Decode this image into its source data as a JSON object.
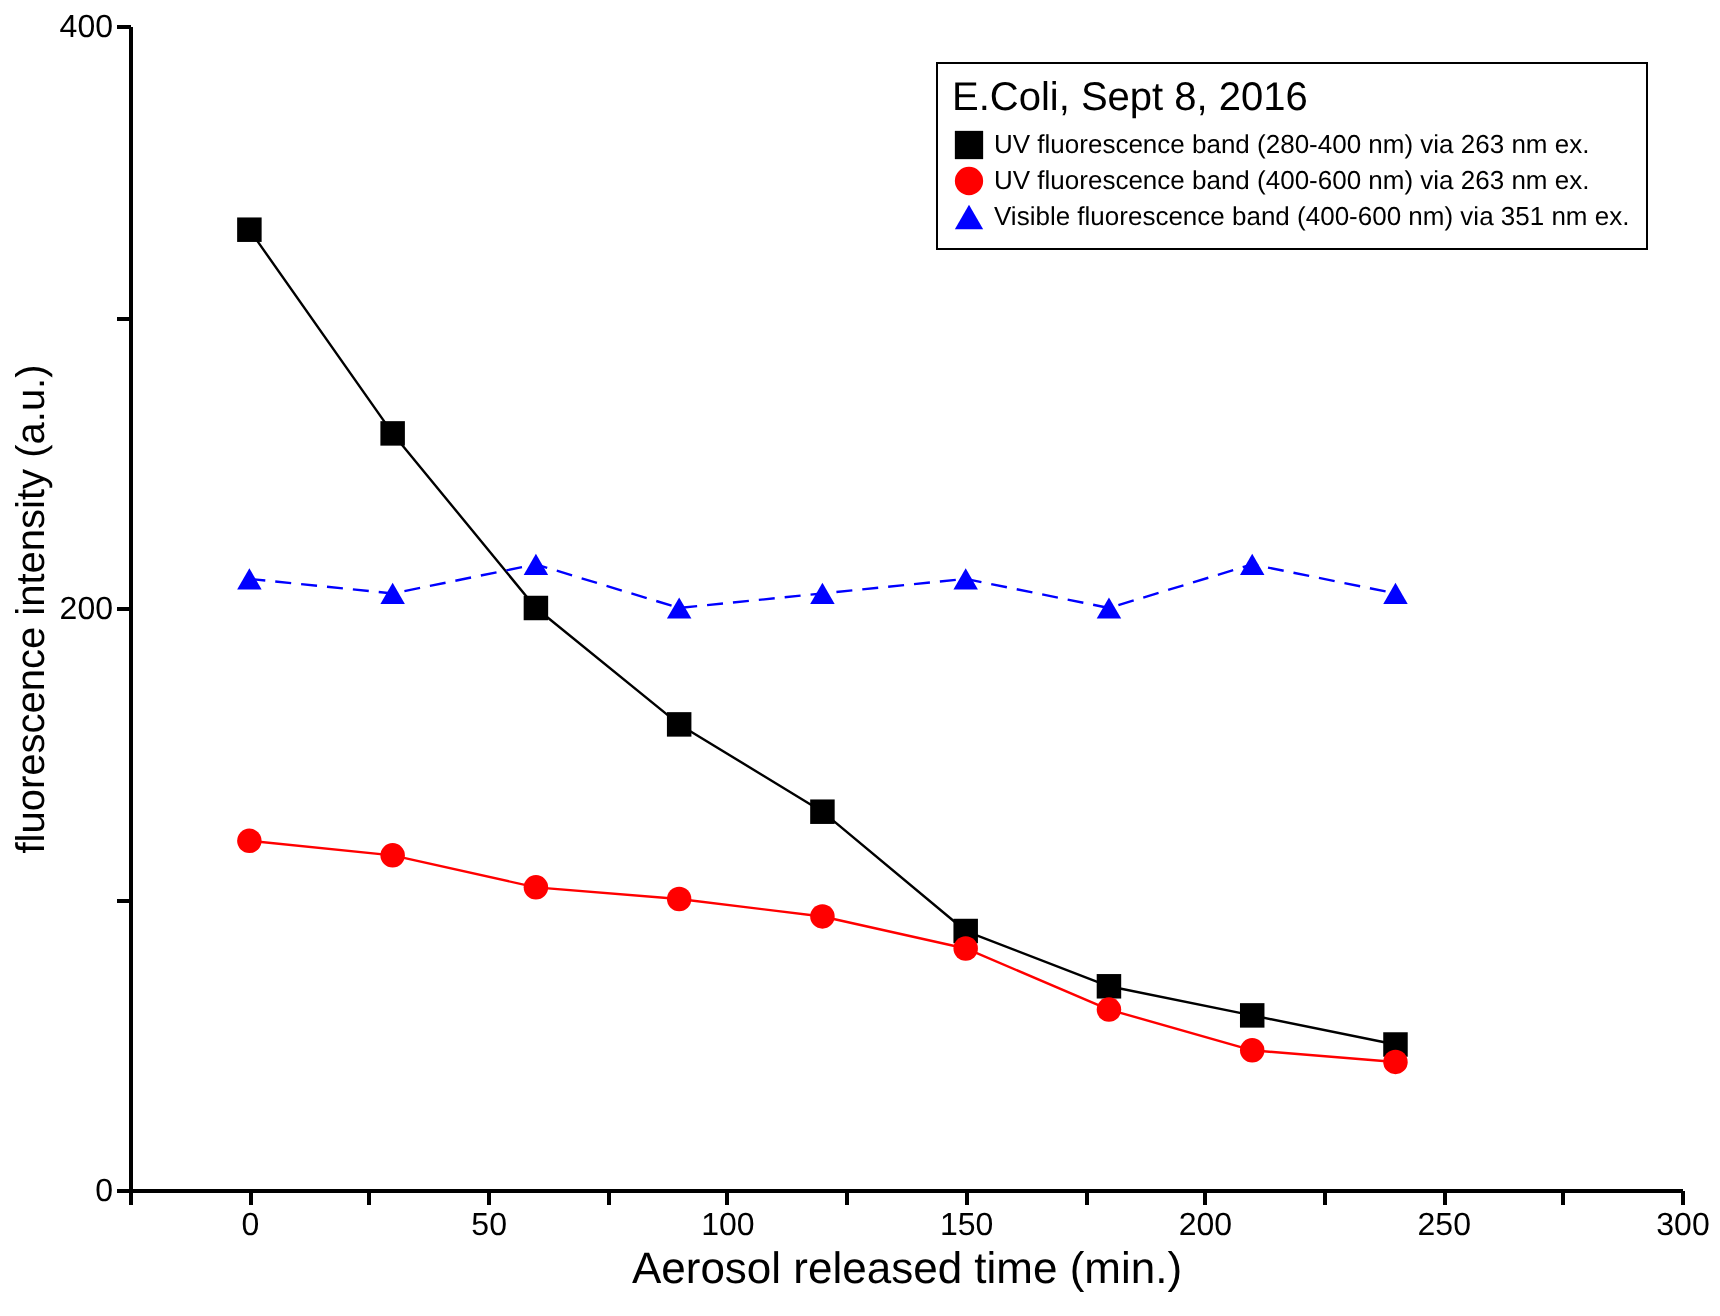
{
  "chart_data": {
    "type": "line",
    "xlabel": "Aerosol released time (min.)",
    "ylabel": "fluorescence intensity (a.u.)",
    "legend_title": "E.Coli, Sept 8, 2016",
    "legend": "top right",
    "grid": false,
    "x": [
      0,
      30,
      60,
      90,
      120,
      150,
      180,
      210,
      240
    ],
    "xlim": [
      -25,
      300
    ],
    "ylim": [
      0,
      400
    ],
    "xticks": [
      {
        "value": -25,
        "label": null
      },
      0,
      {
        "value": 25,
        "label": null
      },
      50,
      {
        "value": 75,
        "label": null
      },
      100,
      {
        "value": 125,
        "label": null
      },
      150,
      {
        "value": 175,
        "label": null
      },
      200,
      {
        "value": 225,
        "label": null
      },
      250,
      {
        "value": 275,
        "label": null
      },
      300
    ],
    "yticks": [
      0,
      {
        "value": 100,
        "label": null
      },
      200,
      {
        "value": 300,
        "label": null
      },
      400
    ],
    "series": [
      {
        "name": "UV fluorescence band (280-400 nm) via 263 nm ex.",
        "color": "#000000",
        "marker": "square",
        "line_style": "solid",
        "values": [
          330,
          260,
          200,
          160,
          130,
          89,
          70,
          60,
          50
        ]
      },
      {
        "name": "UV fluorescence band (400-600 nm) via 263 nm ex.",
        "color": "#ff0000",
        "marker": "circle",
        "line_style": "solid",
        "values": [
          120,
          115,
          104,
          100,
          94,
          83,
          62,
          48,
          44
        ]
      },
      {
        "name": "Visible fluorescence band (400-600 nm) via 351 nm ex.",
        "color": "#0000ff",
        "marker": "triangle",
        "line_style": "dashed",
        "values": [
          210,
          205,
          215,
          200,
          205,
          210,
          200,
          215,
          205
        ]
      }
    ]
  }
}
